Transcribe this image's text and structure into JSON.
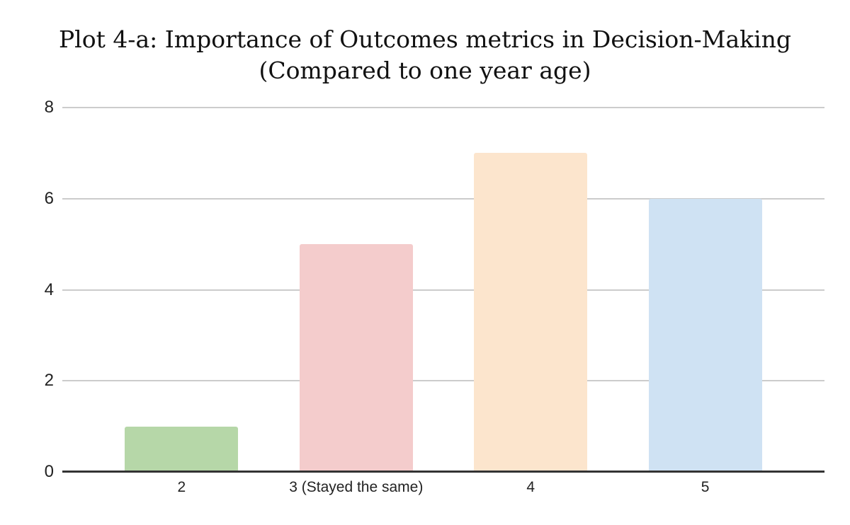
{
  "page": {
    "background": "#ffffff"
  },
  "chart_data": {
    "type": "bar",
    "title": "Plot 4-a: Importance of Outcomes metrics in Decision-Making",
    "subtitle": "(Compared to one year age)",
    "categories": [
      "2",
      "3 (Stayed the same)",
      "4",
      "5"
    ],
    "values": [
      1,
      5,
      7,
      6
    ],
    "bar_colors": [
      "#b6d7a8",
      "#f4cccc",
      "#fce5cd",
      "#cfe2f3"
    ],
    "xlabel": "",
    "ylabel": "",
    "ylim": [
      0,
      8
    ],
    "yticks": [
      0,
      2,
      4,
      6,
      8
    ],
    "grid": true,
    "legend": "none",
    "colors": {
      "background": "#ffffff",
      "gridline": "#cccccc",
      "axis_line": "#333333",
      "tick_text": "#222222",
      "title_text": "#111111"
    }
  }
}
